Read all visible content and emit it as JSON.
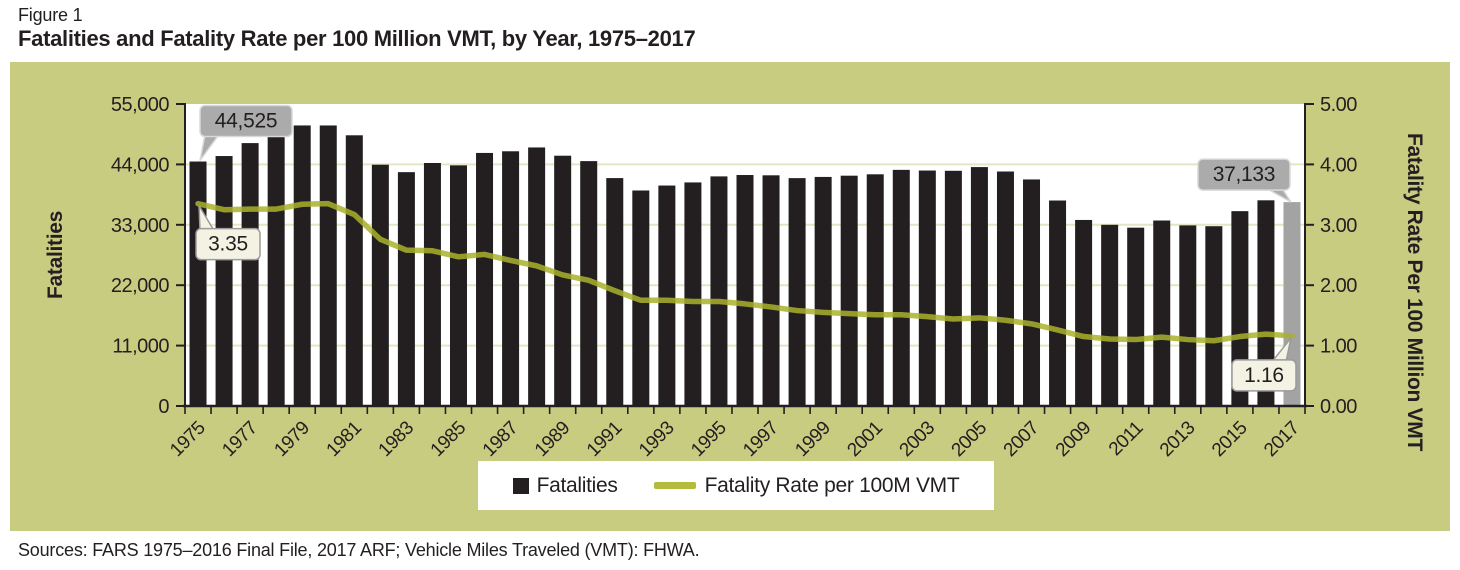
{
  "figure": {
    "label": "Figure 1",
    "title": "Fatalities and Fatality Rate per 100 Million VMT, by Year, 1975–2017"
  },
  "source_note": "Sources: FARS 1975–2016 Final File, 2017 ARF; Vehicle Miles Traveled (VMT): FHWA.",
  "chart_data": {
    "type": "bar",
    "subtype": "dual-axis bar + line combo",
    "categories": [
      1975,
      1976,
      1977,
      1978,
      1979,
      1980,
      1981,
      1982,
      1983,
      1984,
      1985,
      1986,
      1987,
      1988,
      1989,
      1990,
      1991,
      1992,
      1993,
      1994,
      1995,
      1996,
      1997,
      1998,
      1999,
      2000,
      2001,
      2002,
      2003,
      2004,
      2005,
      2006,
      2007,
      2008,
      2009,
      2010,
      2011,
      2012,
      2013,
      2014,
      2015,
      2016,
      2017
    ],
    "series": [
      {
        "name": "Fatalities",
        "type": "bar",
        "axis": "left",
        "values": [
          44525,
          45523,
          47878,
          50331,
          51093,
          51091,
          49301,
          43945,
          42589,
          44257,
          43825,
          46087,
          46390,
          47087,
          45582,
          44599,
          41508,
          39250,
          40150,
          40716,
          41817,
          42065,
          42013,
          41501,
          41717,
          41945,
          42196,
          43005,
          42884,
          42836,
          43510,
          42708,
          41259,
          37423,
          33883,
          32999,
          32479,
          33782,
          32893,
          32744,
          35484,
          37461,
          37133
        ],
        "note": "2017 bar rendered in gray (ARF preliminary)"
      },
      {
        "name": "Fatality Rate per 100M VMT",
        "type": "line",
        "axis": "right",
        "values": [
          3.35,
          3.25,
          3.26,
          3.26,
          3.34,
          3.35,
          3.17,
          2.76,
          2.58,
          2.57,
          2.47,
          2.51,
          2.41,
          2.32,
          2.17,
          2.08,
          1.91,
          1.75,
          1.75,
          1.73,
          1.73,
          1.69,
          1.64,
          1.58,
          1.55,
          1.53,
          1.51,
          1.51,
          1.48,
          1.44,
          1.46,
          1.42,
          1.36,
          1.26,
          1.15,
          1.11,
          1.1,
          1.14,
          1.1,
          1.08,
          1.15,
          1.19,
          1.16
        ]
      }
    ],
    "left_axis": {
      "title": "Fatalities",
      "range": [
        0,
        55000
      ],
      "tick_values": [
        0,
        11000,
        22000,
        33000,
        44000,
        55000
      ],
      "tick_labels": [
        "0",
        "11,000",
        "22,000",
        "33,000",
        "44,000",
        "55,000"
      ],
      "grid_values": [
        11000,
        22000,
        33000,
        44000
      ]
    },
    "right_axis": {
      "title": "Fatality Rate Per 100 Million VMT",
      "range": [
        0,
        5
      ],
      "tick_values": [
        0,
        1,
        2,
        3,
        4,
        5
      ],
      "tick_labels": [
        "0.00",
        "1.00",
        "2.00",
        "3.00",
        "4.00",
        "5.00"
      ]
    },
    "x_axis": {
      "labeled_years": [
        "1975",
        "1977",
        "1979",
        "1981",
        "1983",
        "1985",
        "1987",
        "1989",
        "1991",
        "1993",
        "1995",
        "1997",
        "1999",
        "2001",
        "2003",
        "2005",
        "2007",
        "2009",
        "2011",
        "2013",
        "2015",
        "2017"
      ]
    },
    "annotations": [
      {
        "text": "44,525",
        "attach": "bar",
        "index": 0,
        "placement": "above-right",
        "style": "gray"
      },
      {
        "text": "3.35",
        "attach": "line",
        "index": 0,
        "placement": "below-right",
        "style": "cream"
      },
      {
        "text": "37,133",
        "attach": "bar",
        "index": 42,
        "placement": "above-left",
        "style": "gray"
      },
      {
        "text": "1.16",
        "attach": "line",
        "index": 42,
        "placement": "below-left",
        "style": "cream"
      }
    ],
    "legend": [
      {
        "label": "Fatalities",
        "marker": "square",
        "color": "#231f20"
      },
      {
        "label": "Fatality Rate per 100M VMT",
        "marker": "line",
        "color": "#b3bc3e"
      }
    ],
    "legend_position": "bottom-center",
    "grid": true,
    "final_bar_year": 2017,
    "colors": {
      "panel_bg": "#c8cc80",
      "plot_bg": "#ffffff",
      "bar": "#231f20",
      "final_bar": "#a3a3a3",
      "line": "#a9b22c",
      "line_legend": "#b3bc3e",
      "grid": "#e3e6c3",
      "axis": "#231f20",
      "callout_gray_fill": "#ababab",
      "callout_gray_border": "#d9d9d9",
      "callout_cream_fill": "#f4f3e3",
      "callout_cream_border": "#9b9b9b",
      "text": "#231f20"
    }
  }
}
